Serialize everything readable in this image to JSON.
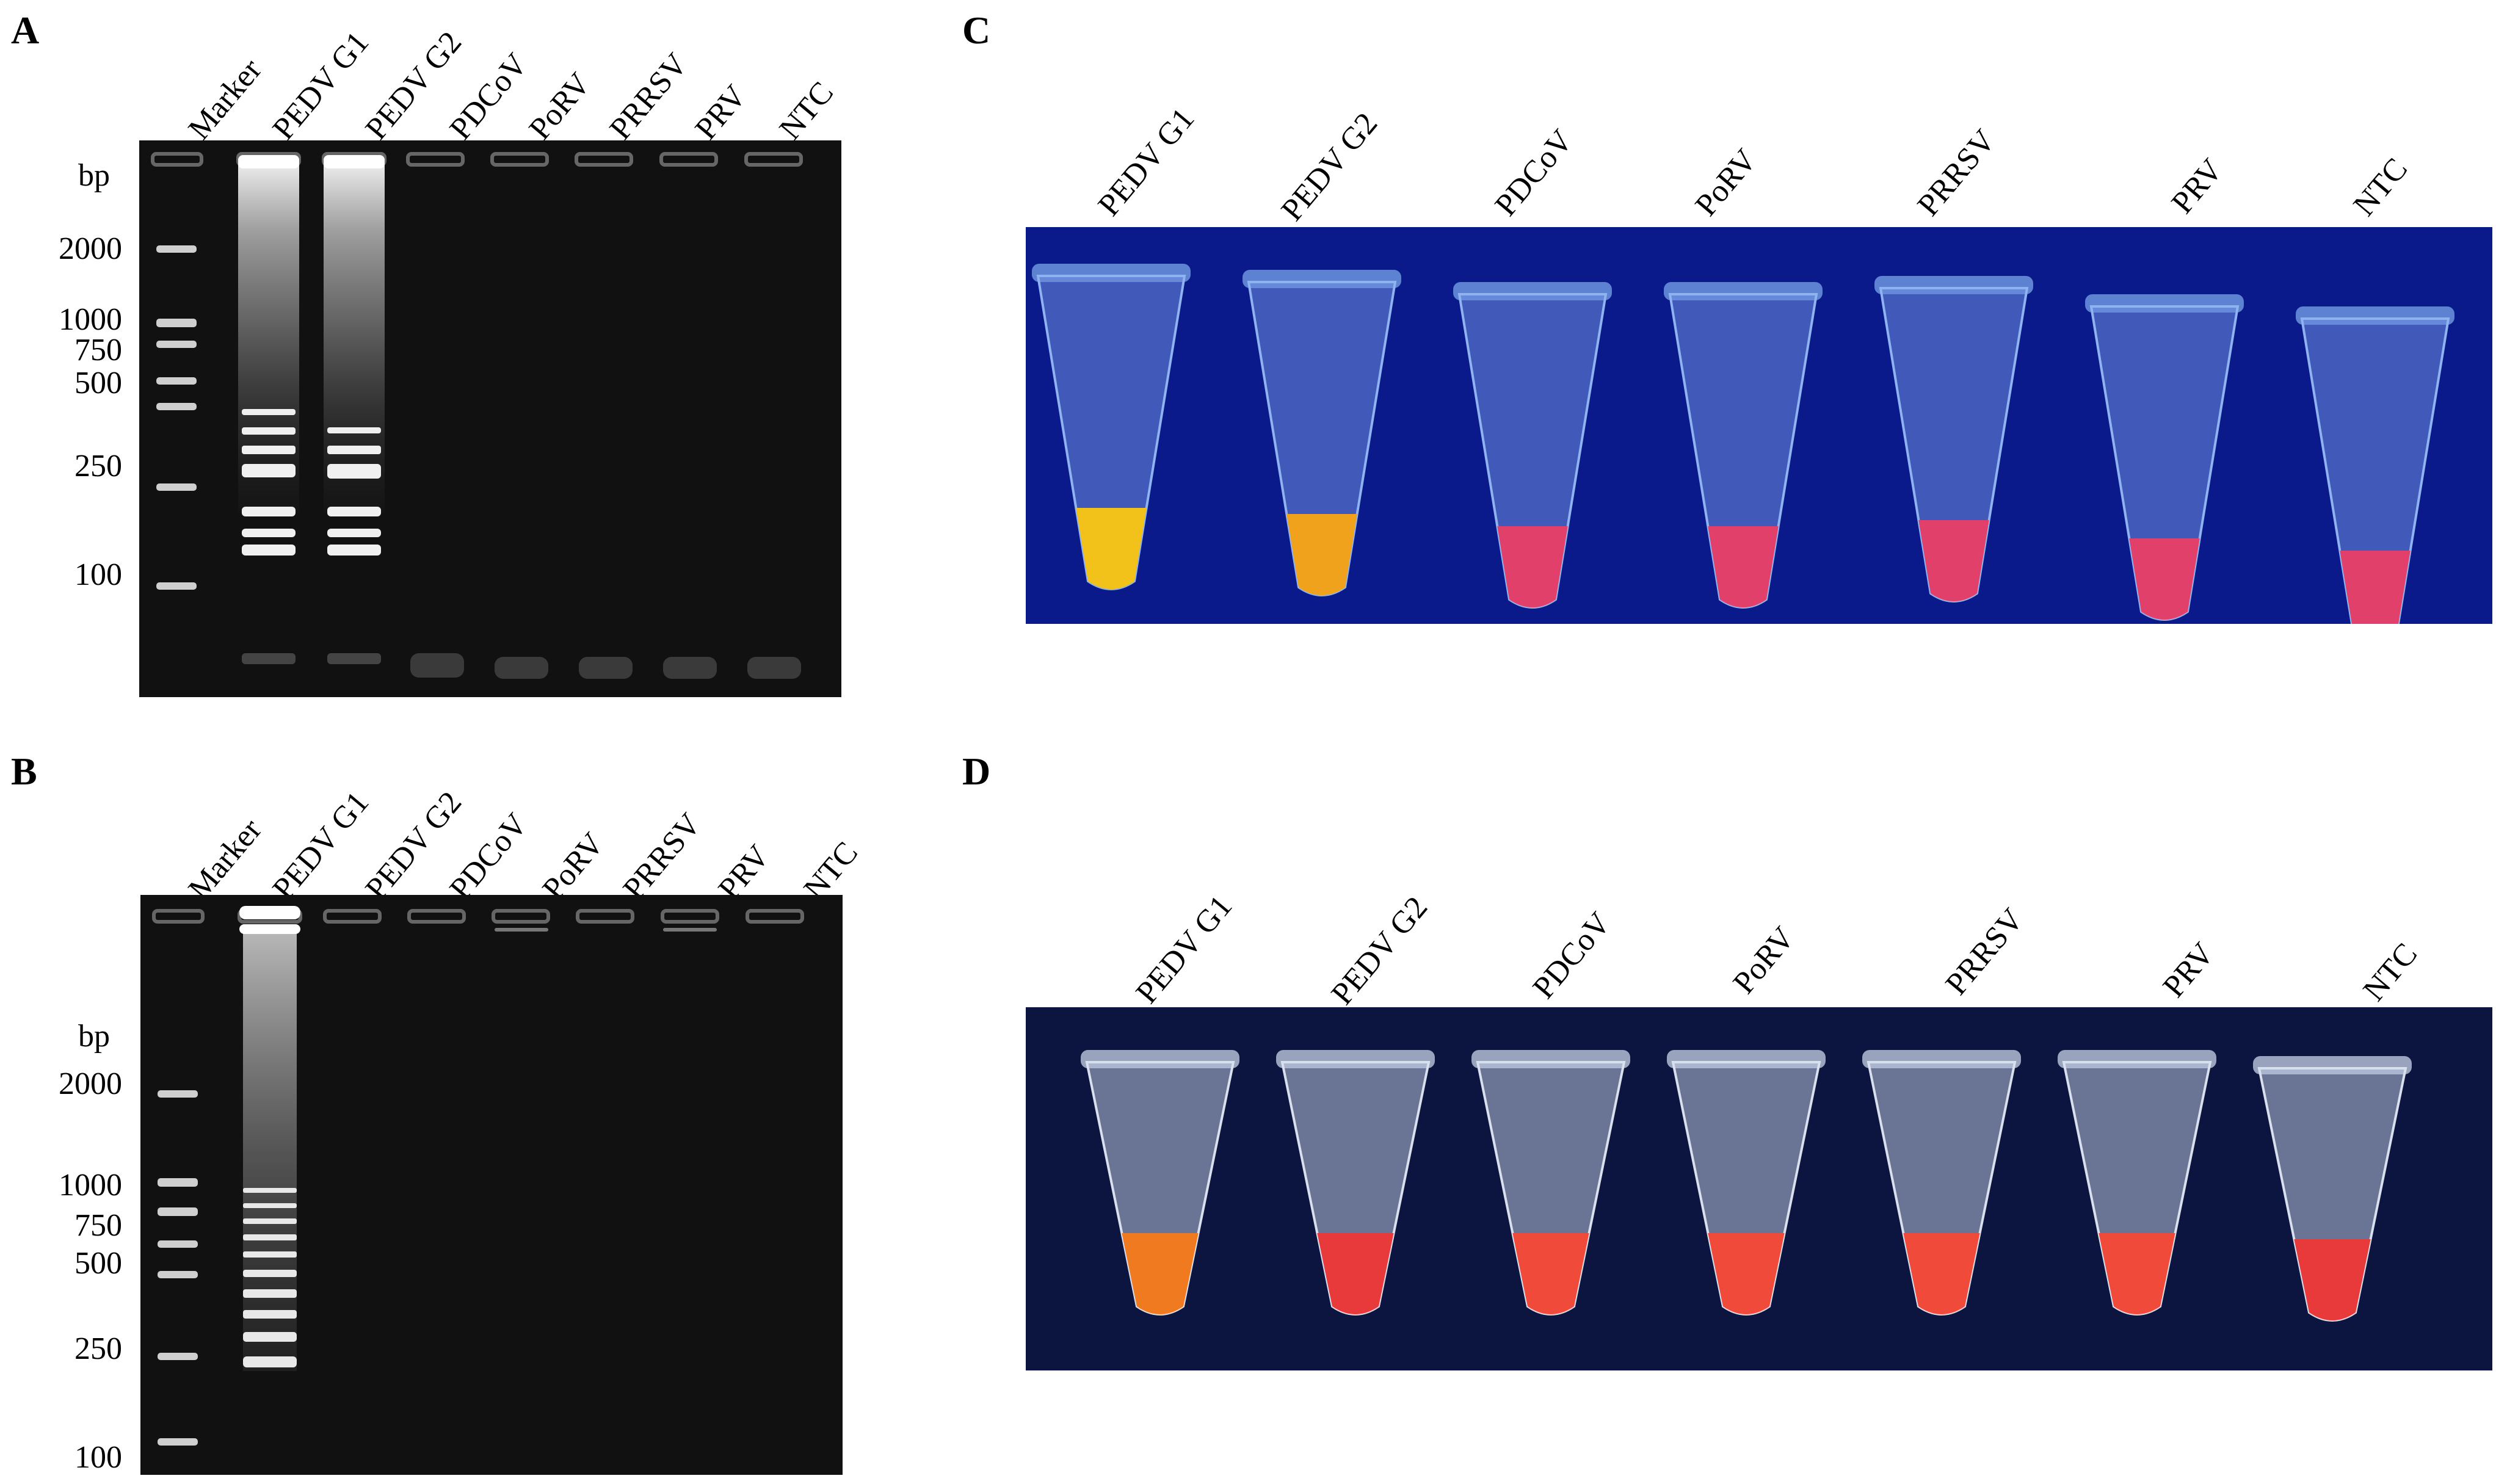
{
  "panels": {
    "A": {
      "letter": "A",
      "lanes": [
        "Marker",
        "PEDV G1",
        "PEDV G2",
        "PDCoV",
        "PoRV",
        "PRRSV",
        "PRV",
        "NTC"
      ],
      "size_unit": "bp",
      "sizes": [
        "2000",
        "1000",
        "750",
        "500",
        "250",
        "100"
      ]
    },
    "B": {
      "letter": "B",
      "lanes": [
        "Marker",
        "PEDV G1",
        "PEDV G2",
        "PDCoV",
        "PoRV",
        "PRRSV",
        "PRV",
        "NTC"
      ],
      "size_unit": "bp",
      "sizes": [
        "2000",
        "1000",
        "750",
        "500",
        "250",
        "100"
      ]
    },
    "C": {
      "letter": "C",
      "tubes": [
        "PEDV G1",
        "PEDV G2",
        "PDCoV",
        "PoRV",
        "PRRSV",
        "PRV",
        "NTC"
      ],
      "tube_colors": [
        "#f2c21a",
        "#f0a21c",
        "#e0406a",
        "#e0406a",
        "#e0406a",
        "#e0406a",
        "#e0406a"
      ]
    },
    "D": {
      "letter": "D",
      "tubes": [
        "PEDV G1",
        "PEDV G2",
        "PDCoV",
        "PoRV",
        "PRRSV",
        "PRV",
        "NTC"
      ],
      "tube_colors": [
        "#f07a20",
        "#e83a3a",
        "#f04a3a",
        "#f04a3a",
        "#f04a3a",
        "#f04a3a",
        "#e83a3a"
      ]
    }
  }
}
